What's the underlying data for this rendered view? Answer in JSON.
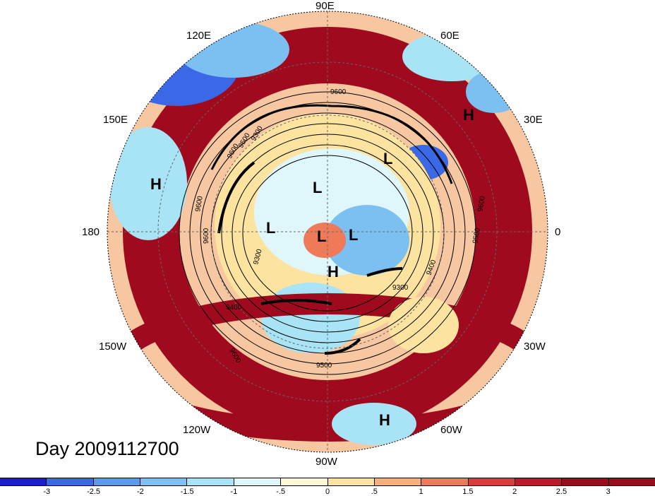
{
  "lon_labels": {
    "e90": "90E",
    "e60": "60E",
    "e30": "30E",
    "zero": "0",
    "w30": "30W",
    "w60": "60W",
    "w90": "90W",
    "w120": "120W",
    "w150": "150W",
    "deg180": "180",
    "e150": "150E",
    "e120": "120E"
  },
  "pressure_systems": {
    "h1": "H",
    "h2": "H",
    "h3": "H",
    "h4": "H",
    "l1": "L",
    "l2": "L",
    "l3": "L",
    "l4": "L",
    "l5": "L"
  },
  "contour_labels": [
    "9600",
    "9600",
    "9400",
    "9300",
    "9600",
    "9500",
    "9600",
    "9300",
    "9600",
    "9500",
    "9400",
    "9300",
    "9600",
    "9500"
  ],
  "timestamp": "Day 2009112700",
  "colorbar": {
    "colors": [
      "#1c1cd4",
      "#3a68e6",
      "#5a9bea",
      "#7cc0f2",
      "#a8e4f6",
      "#dff6fa",
      "#fff8d4",
      "#fde3a0",
      "#f8b07a",
      "#ef7a5a",
      "#e0393c",
      "#c0182a",
      "#a00a1e"
    ],
    "tick_labels": [
      "-3",
      "-2.5",
      "-2",
      "-1.5",
      "-1",
      "-.5",
      "0",
      ".5",
      "1",
      "1.5",
      "2",
      "2.5",
      "3"
    ]
  }
}
